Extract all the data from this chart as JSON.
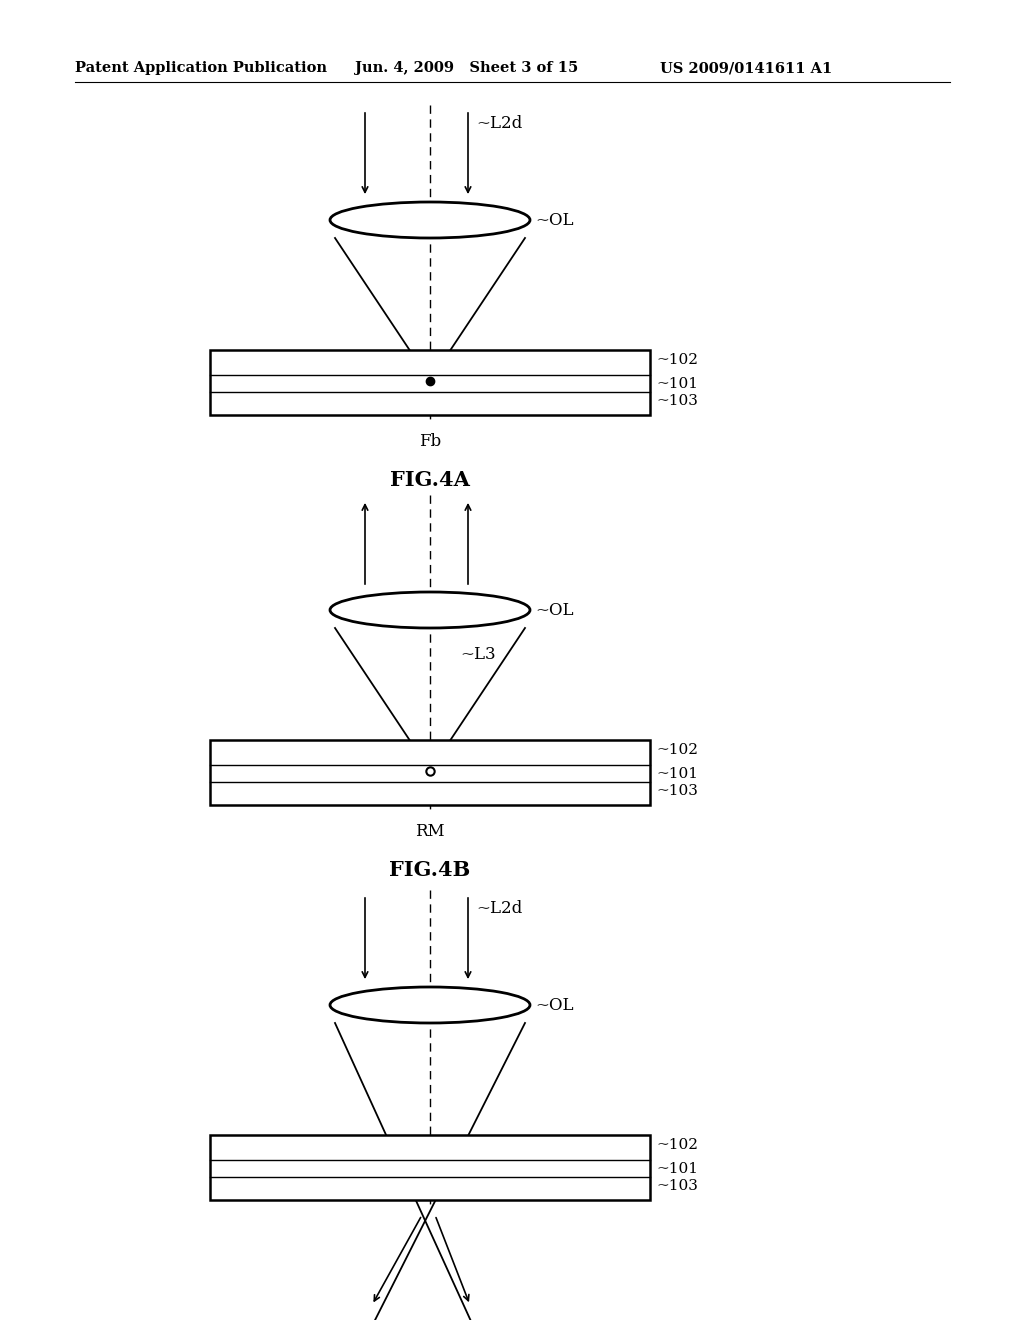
{
  "background_color": "#ffffff",
  "header_left": "Patent Application Publication",
  "header_mid": "Jun. 4, 2009   Sheet 3 of 15",
  "header_right": "US 2009/0141611 A1",
  "header_fontsize": 10.5,
  "fig_label_fontsize": 15
}
